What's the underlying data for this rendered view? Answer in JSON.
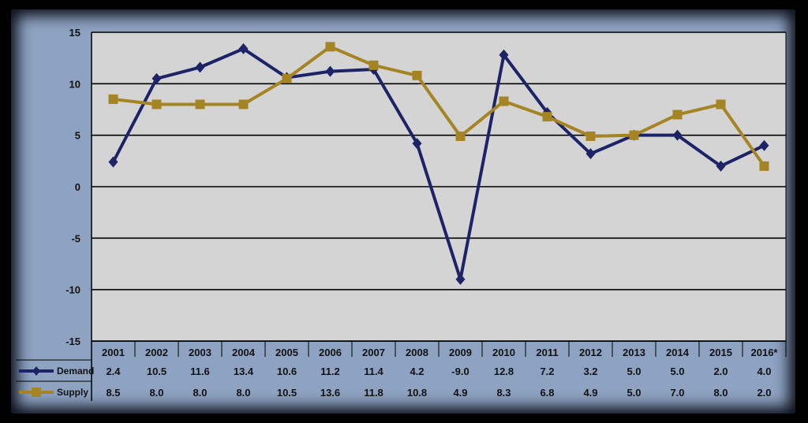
{
  "chart_data": {
    "type": "line",
    "title": "",
    "xlabel": "",
    "ylabel": "",
    "ylim": [
      -15,
      15
    ],
    "yticks": [
      15,
      10,
      5,
      0,
      -5,
      -10,
      -15
    ],
    "grid": true,
    "legend_placement": "bottom-left (data table rows)",
    "categories": [
      "2001",
      "2002",
      "2003",
      "2004",
      "2005",
      "2006",
      "2007",
      "2008",
      "2009",
      "2010",
      "2011",
      "2012",
      "2013",
      "2014",
      "2015",
      "2016*"
    ],
    "series": [
      {
        "name": "Demand",
        "color": "#1c2366",
        "marker": "diamond",
        "values": [
          2.4,
          10.5,
          11.6,
          13.4,
          10.6,
          11.2,
          11.4,
          4.2,
          -9.0,
          12.8,
          7.2,
          3.2,
          5.0,
          5.0,
          2.0,
          4.0
        ],
        "labels": [
          "2.4",
          "10.5",
          "11.6",
          "13.4",
          "10.6",
          "11.2",
          "11.4",
          "4.2",
          "-9.0",
          "12.8",
          "7.2",
          "3.2",
          "5.0",
          "5.0",
          "2.0",
          "4.0"
        ]
      },
      {
        "name": "Supply",
        "color": "#a48423",
        "marker": "square",
        "values": [
          8.5,
          8.0,
          8.0,
          8.0,
          10.5,
          13.6,
          11.8,
          10.8,
          4.9,
          8.3,
          6.8,
          4.9,
          5.0,
          7.0,
          8.0,
          2.0
        ],
        "labels": [
          "8.5",
          "8.0",
          "8.0",
          "8.0",
          "10.5",
          "13.6",
          "11.8",
          "10.8",
          "4.9",
          "8.3",
          "6.8",
          "4.9",
          "5.0",
          "7.0",
          "8.0",
          "2.0"
        ]
      }
    ]
  }
}
